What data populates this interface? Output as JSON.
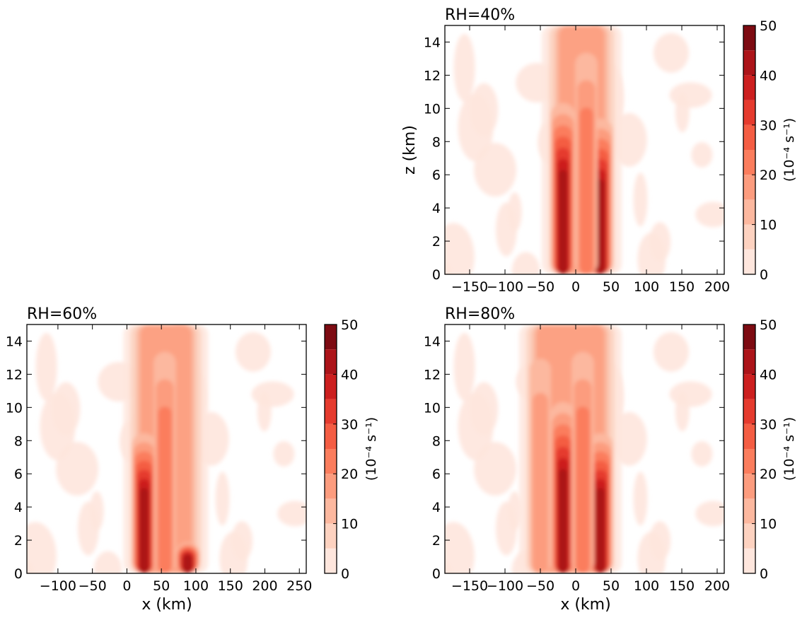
{
  "chart_data": [
    {
      "type": "heatmap",
      "title": "RH=40%",
      "xlabel": "",
      "ylabel": "z (km)",
      "xlim": [
        -185,
        210
      ],
      "ylim": [
        0,
        15
      ],
      "xticks": [
        -150,
        -100,
        -50,
        0,
        50,
        100,
        150,
        200
      ],
      "yticks": [
        0,
        2,
        4,
        6,
        8,
        10,
        12,
        14
      ],
      "xtick_labels": [
        "−150",
        "−100",
        "−50",
        "0",
        "50",
        "100",
        "150",
        "200"
      ],
      "ytick_labels": [
        "0",
        "2",
        "4",
        "6",
        "8",
        "10",
        "12",
        "14"
      ],
      "colorbar": {
        "label": "(10⁻⁴ s⁻¹)",
        "levels": [
          0,
          5,
          10,
          15,
          20,
          25,
          30,
          35,
          40,
          45,
          50
        ],
        "tick_labels": [
          "0",
          "10",
          "20",
          "30",
          "40",
          "50"
        ],
        "colormap": "Reds",
        "colors": [
          "#fee6dd",
          "#fdd2c0",
          "#fcb89f",
          "#fc9c7e",
          "#fb7d5d",
          "#f45d43",
          "#e53b2e",
          "#cc1f1f",
          "#ac1419",
          "#7d0b12"
        ]
      },
      "features": [
        {
          "x_center": -18,
          "z_top": 11,
          "peak_value": 45
        },
        {
          "x_center": 35,
          "z_top": 10,
          "peak_value": 45
        },
        {
          "x_center": 15,
          "z_top": 15,
          "peak_value": 25
        }
      ]
    },
    {
      "type": "heatmap",
      "title": "RH=60%",
      "xlabel": "x (km)",
      "ylabel": "",
      "xlim": [
        -145,
        260
      ],
      "ylim": [
        0,
        15
      ],
      "xticks": [
        -100,
        -50,
        0,
        50,
        100,
        150,
        200,
        250
      ],
      "yticks": [
        0,
        2,
        4,
        6,
        8,
        10,
        12,
        14
      ],
      "xtick_labels": [
        "−100",
        "−50",
        "0",
        "50",
        "100",
        "150",
        "200",
        "250"
      ],
      "ytick_labels": [
        "0",
        "2",
        "4",
        "6",
        "8",
        "10",
        "12",
        "14"
      ],
      "colorbar": {
        "label": "(10⁻⁴ s⁻¹)",
        "levels": [
          0,
          5,
          10,
          15,
          20,
          25,
          30,
          35,
          40,
          45,
          50
        ],
        "tick_labels": [
          "0",
          "10",
          "20",
          "30",
          "40",
          "50"
        ],
        "colormap": "Reds",
        "colors": [
          "#fee6dd",
          "#fdd2c0",
          "#fcb89f",
          "#fc9c7e",
          "#fb7d5d",
          "#f45d43",
          "#e53b2e",
          "#cc1f1f",
          "#ac1419",
          "#7d0b12"
        ]
      },
      "features": [
        {
          "x_center": 25,
          "z_top": 9,
          "peak_value": 45
        },
        {
          "x_center": 88,
          "z_top": 2,
          "peak_value": 45
        },
        {
          "x_center": 55,
          "z_top": 15,
          "peak_value": 25
        }
      ]
    },
    {
      "type": "heatmap",
      "title": "RH=80%",
      "xlabel": "x (km)",
      "ylabel": "",
      "xlim": [
        -185,
        210
      ],
      "ylim": [
        0,
        15
      ],
      "xticks": [
        -150,
        -100,
        -50,
        0,
        50,
        100,
        150,
        200
      ],
      "yticks": [
        0,
        2,
        4,
        6,
        8,
        10,
        12,
        14
      ],
      "xtick_labels": [
        "−150",
        "−100",
        "−50",
        "0",
        "50",
        "100",
        "150",
        "200"
      ],
      "ytick_labels": [
        "0",
        "2",
        "4",
        "6",
        "8",
        "10",
        "12",
        "14"
      ],
      "colorbar": {
        "label": "(10⁻⁴ s⁻¹)",
        "levels": [
          0,
          5,
          10,
          15,
          20,
          25,
          30,
          35,
          40,
          45,
          50
        ],
        "tick_labels": [
          "0",
          "10",
          "20",
          "30",
          "40",
          "50"
        ],
        "colormap": "Reds",
        "colors": [
          "#fee6dd",
          "#fdd2c0",
          "#fcb89f",
          "#fc9c7e",
          "#fb7d5d",
          "#f45d43",
          "#e53b2e",
          "#cc1f1f",
          "#ac1419",
          "#7d0b12"
        ]
      },
      "features": [
        {
          "x_center": -18,
          "z_top": 11,
          "peak_value": 45
        },
        {
          "x_center": 35,
          "z_top": 9,
          "peak_value": 45
        },
        {
          "x_center": 10,
          "z_top": 15,
          "peak_value": 25
        },
        {
          "x_center": -50,
          "z_top": 15,
          "peak_value": 20
        }
      ]
    }
  ]
}
